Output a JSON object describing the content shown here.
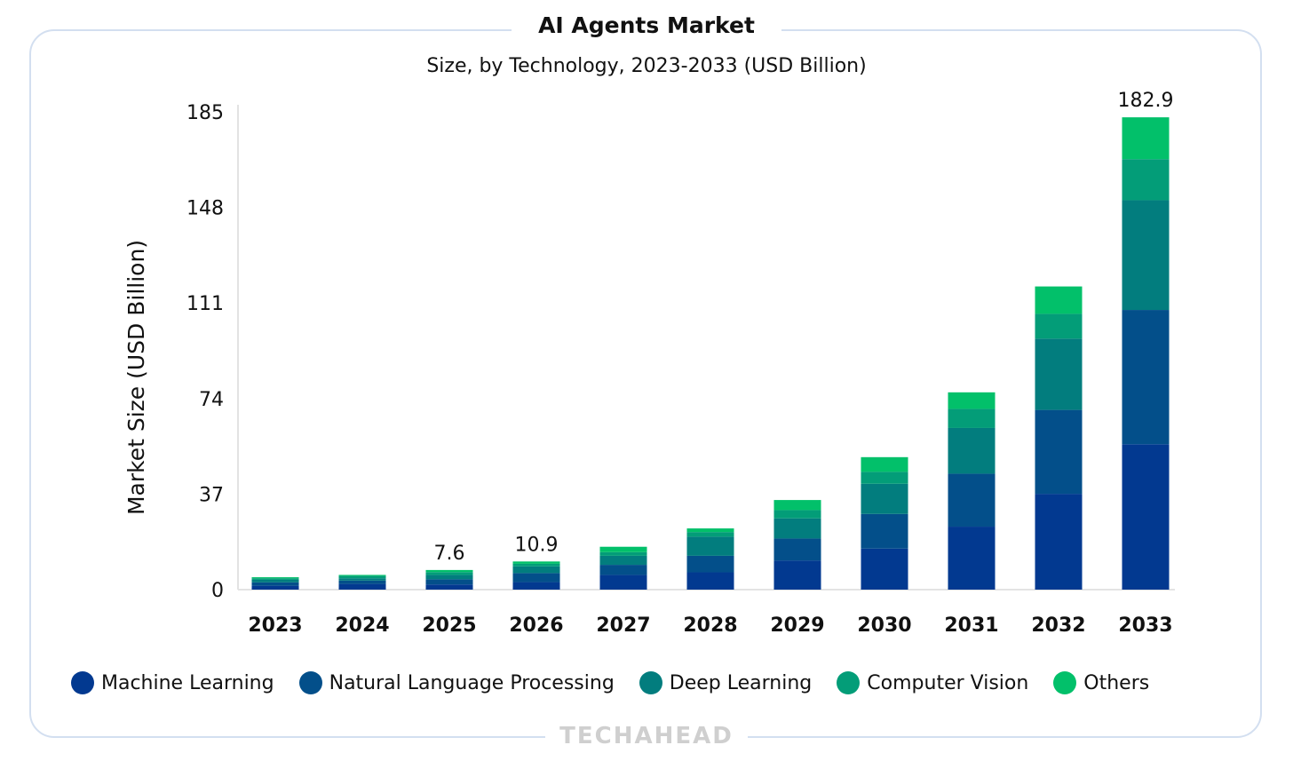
{
  "brand": "TECHAHEAD",
  "chart_data": {
    "type": "bar",
    "stacked": true,
    "title": "AI Agents Market",
    "subtitle": "Size, by Technology, 2023-2033 (USD Billion)",
    "xlabel": "",
    "ylabel": "Market Size (USD Billion)",
    "ylim": [
      0,
      185
    ],
    "yticks": [
      0,
      37,
      74,
      111,
      148,
      185
    ],
    "grid": false,
    "legend_position": "bottom",
    "categories": [
      "2023",
      "2024",
      "2025",
      "2026",
      "2027",
      "2028",
      "2029",
      "2030",
      "2031",
      "2032",
      "2033"
    ],
    "series": [
      {
        "name": "Machine Learning",
        "color": "#023990",
        "values": [
          1.5,
          2.2,
          2.0,
          2.9,
          5.7,
          6.7,
          11.3,
          15.9,
          24.4,
          37.1,
          56.3
        ]
      },
      {
        "name": "Natural Language Processing",
        "color": "#034f8a",
        "values": [
          1.3,
          1.3,
          2.0,
          3.5,
          3.9,
          6.4,
          8.5,
          13.4,
          20.5,
          32.5,
          52.0
        ]
      },
      {
        "name": "Deep Learning",
        "color": "#027d7e",
        "values": [
          1.0,
          0.9,
          1.7,
          2.6,
          3.5,
          7.4,
          7.8,
          11.7,
          17.7,
          27.6,
          42.5
        ]
      },
      {
        "name": "Computer Vision",
        "color": "#039d78",
        "values": [
          0.6,
          0.9,
          1.1,
          1.0,
          1.4,
          1.8,
          3.2,
          4.6,
          7.4,
          9.6,
          15.9
        ]
      },
      {
        "name": "Others",
        "color": "#02c06a",
        "values": [
          0.4,
          0.4,
          0.8,
          0.9,
          2.1,
          1.4,
          3.9,
          5.7,
          6.4,
          10.6,
          16.2
        ]
      }
    ],
    "data_labels": [
      {
        "category": "2025",
        "text": "7.6"
      },
      {
        "category": "2026",
        "text": "10.9"
      },
      {
        "category": "2033",
        "text": "182.9"
      }
    ]
  }
}
